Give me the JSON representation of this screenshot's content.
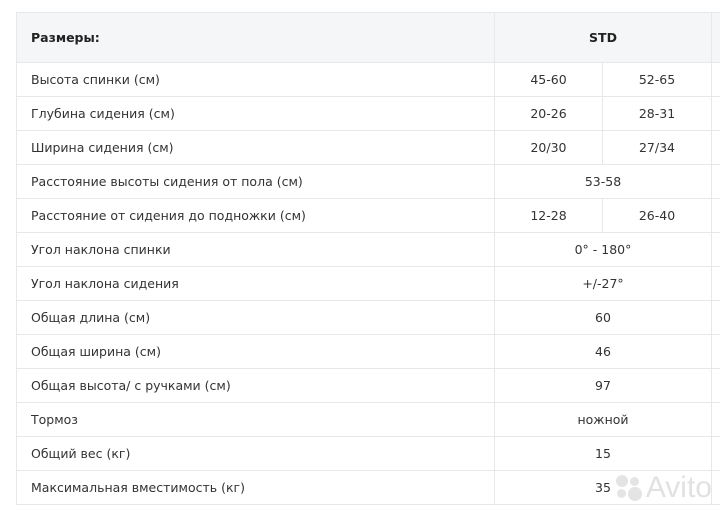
{
  "table": {
    "header": {
      "label": "Размеры:",
      "group": "STD"
    },
    "rows": [
      {
        "label": "Высота спинки (см)",
        "values": [
          "45-60",
          "52-65"
        ]
      },
      {
        "label": "Глубина сидения (см)",
        "values": [
          "20-26",
          "28-31"
        ]
      },
      {
        "label": "Ширина сидения (см)",
        "values": [
          "20/30",
          "27/34"
        ]
      },
      {
        "label": "Расстояние высоты сидения от пола (см)",
        "values": [
          "53-58"
        ]
      },
      {
        "label": "Расстояние от сидения до подножки (см)",
        "values": [
          "12-28",
          "26-40"
        ]
      },
      {
        "label": "Угол наклона спинки",
        "values": [
          "0° - 180°"
        ]
      },
      {
        "label": "Угол наклона сидения",
        "values": [
          "+/-27°"
        ]
      },
      {
        "label": "Общая длина (см)",
        "values": [
          "60"
        ]
      },
      {
        "label": "Общая ширина (см)",
        "values": [
          "46"
        ]
      },
      {
        "label": "Общая высота/ с ручками (см)",
        "values": [
          "97"
        ]
      },
      {
        "label": "Тормоз",
        "values": [
          "ножной"
        ]
      },
      {
        "label": "Общий вес (кг)",
        "values": [
          "15"
        ]
      },
      {
        "label": "Максимальная вместимость (кг)",
        "values": [
          "35"
        ]
      }
    ]
  },
  "watermark": {
    "text": "Avito"
  }
}
